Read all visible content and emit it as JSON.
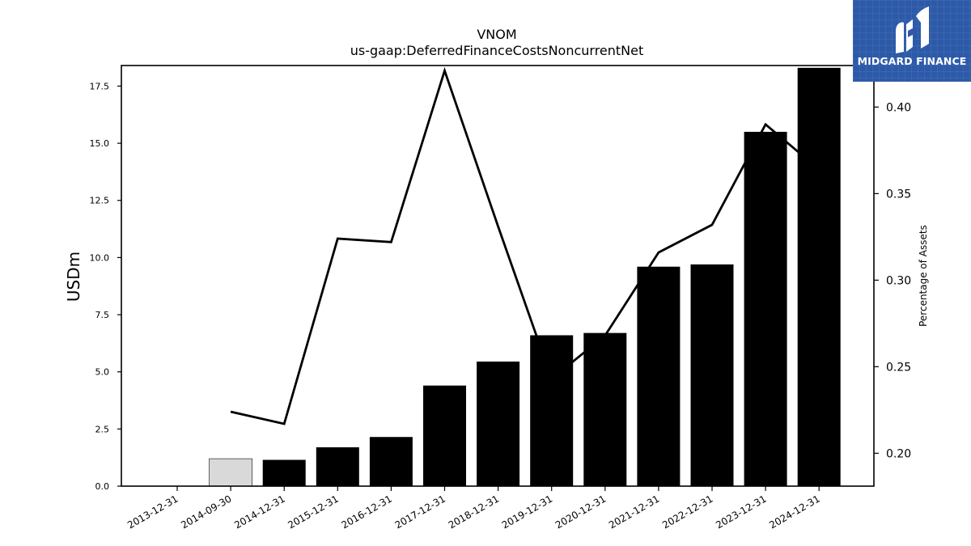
{
  "chart_data": {
    "type": "bar",
    "title": "VNOM",
    "subtitle": "us-gaap:DeferredFinanceCostsNoncurrentNet",
    "ylabel": "USDm",
    "y2label": "Percentage of Assets",
    "categories": [
      "2013-12-31",
      "2014-09-30",
      "2014-12-31",
      "2015-12-31",
      "2016-12-31",
      "2017-12-31",
      "2018-12-31",
      "2019-12-31",
      "2020-12-31",
      "2021-12-31",
      "2022-12-31",
      "2023-12-31",
      "2024-12-31"
    ],
    "series": [
      {
        "type": "bar",
        "axis": "left",
        "values": [
          0,
          1.2,
          1.15,
          1.7,
          2.15,
          4.4,
          5.45,
          6.6,
          6.7,
          9.6,
          9.7,
          15.5,
          18.3
        ],
        "colors": [
          "#000000",
          "#d9d9d9",
          "#000000",
          "#000000",
          "#000000",
          "#000000",
          "#000000",
          "#000000",
          "#000000",
          "#000000",
          "#000000",
          "#000000",
          "#000000"
        ]
      },
      {
        "type": "line",
        "axis": "right",
        "color": "#000000",
        "values": [
          null,
          0.224,
          0.217,
          0.324,
          0.322,
          0.421,
          0.331,
          0.243,
          0.268,
          0.316,
          0.332,
          0.39,
          0.364
        ]
      }
    ],
    "ylim": [
      0,
      18.4
    ],
    "yticks": [
      0,
      2.5,
      5,
      7.5,
      10,
      12.5,
      15,
      17.5
    ],
    "ytick_labels": [
      "0.0",
      "2.5",
      "5.0",
      "7.5",
      "10.0",
      "12.5",
      "15.0",
      "17.5"
    ],
    "y2lim": [
      0.181,
      0.424
    ],
    "y2ticks": [
      0.2,
      0.25,
      0.3,
      0.35,
      0.4
    ],
    "y2tick_labels": [
      "0.20",
      "0.25",
      "0.30",
      "0.35",
      "0.40"
    ],
    "grid": false,
    "legend": "none"
  },
  "logo": {
    "text": "MIDGARD FINANCE",
    "bg_color": "#2d5aa8"
  }
}
